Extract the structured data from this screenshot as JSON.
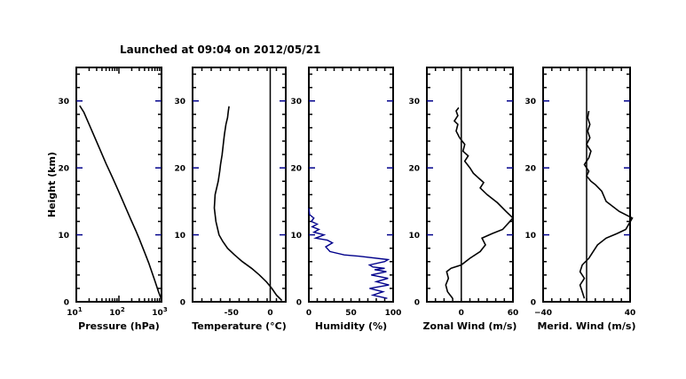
{
  "figure": {
    "title": "Launched at 09:04 on 2012/05/21"
  },
  "chart_data": [
    {
      "type": "line",
      "name": "pressure-profile",
      "xlabel": "Pressure (hPa)",
      "ylabel": "Height (km)",
      "xscale": "log",
      "xlim": [
        10,
        1000
      ],
      "ylim": [
        0,
        35
      ],
      "xticks": [
        10,
        100,
        1000
      ],
      "xtick_labels": [
        {
          "base": "10",
          "exp": "1"
        },
        {
          "base": "10",
          "exp": "2"
        },
        {
          "base": "10",
          "exp": "3"
        }
      ],
      "yticks": [
        0,
        10,
        20,
        30
      ],
      "ytick_labels": [
        "0",
        "10",
        "20",
        "30"
      ],
      "zero_line": null,
      "series": [
        {
          "x": [
            1000,
            850,
            700,
            500,
            400,
            300,
            250,
            200,
            150,
            100,
            70,
            50,
            30,
            20,
            15,
            12
          ],
          "y": [
            0.3,
            1.5,
            3.1,
            5.8,
            7.4,
            9.4,
            10.6,
            12.0,
            13.8,
            16.4,
            18.6,
            20.6,
            23.9,
            26.5,
            28.3,
            29.3
          ]
        }
      ]
    },
    {
      "type": "line",
      "name": "temperature-profile",
      "xlabel": "Temperature (°C)",
      "ylabel": "",
      "xlim": [
        -100,
        20
      ],
      "ylim": [
        0,
        35
      ],
      "xticks": [
        -50,
        0
      ],
      "xtick_labels": [
        "-50",
        "0"
      ],
      "yticks": [
        0,
        10,
        20,
        30
      ],
      "ytick_labels": [
        "0",
        "10",
        "20",
        "30"
      ],
      "zero_line": 0,
      "series": [
        {
          "x": [
            15,
            8,
            2,
            -5,
            -14,
            -24,
            -36,
            -46,
            -55,
            -61,
            -66,
            -70,
            -72,
            -71,
            -67,
            -65,
            -64,
            -62,
            -60,
            -59,
            -57,
            -55,
            -54,
            -53
          ],
          "y": [
            0.2,
            1.0,
            2.0,
            3.0,
            4.0,
            5.0,
            6.0,
            7.0,
            8.0,
            9.0,
            10.0,
            12.0,
            14.0,
            16.0,
            18.0,
            19.5,
            20.5,
            22.0,
            24.0,
            25.0,
            26.5,
            27.5,
            28.5,
            29.2
          ]
        }
      ]
    },
    {
      "type": "line",
      "name": "humidity-profile",
      "xlabel": "Humidity (%)",
      "ylabel": "",
      "xlim": [
        0,
        100
      ],
      "ylim": [
        0,
        35
      ],
      "xticks": [
        0,
        50,
        100
      ],
      "xtick_labels": [
        "0",
        "50",
        "100"
      ],
      "yticks": [
        0,
        10,
        20,
        30
      ],
      "ytick_labels": [
        "0",
        "10",
        "20",
        "30"
      ],
      "zero_line": null,
      "series": [
        {
          "x": [
            93,
            76,
            88,
            72,
            95,
            80,
            94,
            74,
            92,
            78,
            90,
            76,
            72,
            90,
            94,
            60,
            42,
            25,
            20,
            28,
            22,
            8,
            18,
            6,
            12,
            4,
            10,
            3,
            6,
            1,
            0
          ],
          "y": [
            0.5,
            1.0,
            1.5,
            2.0,
            2.5,
            3.0,
            3.5,
            4.0,
            4.5,
            4.8,
            5.0,
            5.2,
            5.5,
            6.0,
            6.3,
            6.8,
            7.0,
            7.5,
            8.2,
            8.8,
            9.2,
            9.5,
            10.0,
            10.4,
            10.8,
            11.2,
            11.6,
            12.0,
            12.5,
            13.0,
            14.0
          ]
        }
      ]
    },
    {
      "type": "line",
      "name": "zonal-wind-profile",
      "xlabel": "Zonal Wind (m/s)",
      "ylabel": "",
      "xlim": [
        -40,
        60
      ],
      "ylim": [
        0,
        35
      ],
      "xticks": [
        0,
        60
      ],
      "xtick_labels": [
        "0",
        "60"
      ],
      "yticks": [
        0,
        10,
        20,
        30
      ],
      "ytick_labels": [
        "0",
        "10",
        "20",
        "30"
      ],
      "zero_line": 0,
      "series": [
        {
          "x": [
            -10,
            -16,
            -18,
            -15,
            -17,
            -12,
            0,
            10,
            22,
            28,
            24,
            36,
            48,
            60,
            52,
            42,
            30,
            22,
            26,
            20,
            14,
            10,
            4,
            8,
            2,
            4,
            -2,
            -6,
            -4,
            -8,
            -4,
            -6,
            -3
          ],
          "y": [
            0.5,
            1.5,
            2.5,
            3.5,
            4.5,
            5.0,
            5.5,
            6.5,
            7.5,
            8.5,
            9.5,
            10.2,
            10.8,
            12.5,
            13.5,
            14.8,
            16.0,
            17.0,
            17.8,
            18.5,
            19.2,
            20.0,
            21.0,
            21.8,
            22.5,
            23.5,
            24.5,
            25.5,
            26.5,
            27.0,
            27.8,
            28.5,
            29.0
          ]
        }
      ]
    },
    {
      "type": "line",
      "name": "meridional-wind-profile",
      "xlabel": "Merid. Wind (m/s)",
      "ylabel": "",
      "xlim": [
        -40,
        40
      ],
      "ylim": [
        0,
        35
      ],
      "xticks": [
        -40,
        40
      ],
      "xtick_labels": [
        "−40",
        "40"
      ],
      "yticks": [
        0,
        10,
        20,
        30
      ],
      "ytick_labels": [
        "0",
        "10",
        "20",
        "30"
      ],
      "zero_line": 0,
      "series": [
        {
          "x": [
            -2,
            -4,
            -6,
            -2,
            -6,
            -4,
            2,
            6,
            10,
            18,
            28,
            36,
            42,
            30,
            18,
            14,
            8,
            4,
            0,
            2,
            -2,
            2,
            4,
            0,
            3,
            1,
            3,
            1,
            2
          ],
          "y": [
            0.5,
            1.5,
            2.5,
            3.5,
            4.5,
            5.5,
            6.5,
            7.5,
            8.5,
            9.5,
            10.2,
            10.8,
            12.5,
            13.5,
            15.0,
            16.5,
            17.5,
            18.0,
            18.8,
            19.5,
            20.5,
            21.5,
            22.5,
            23.5,
            24.5,
            25.5,
            26.5,
            27.5,
            28.5
          ]
        }
      ]
    }
  ]
}
